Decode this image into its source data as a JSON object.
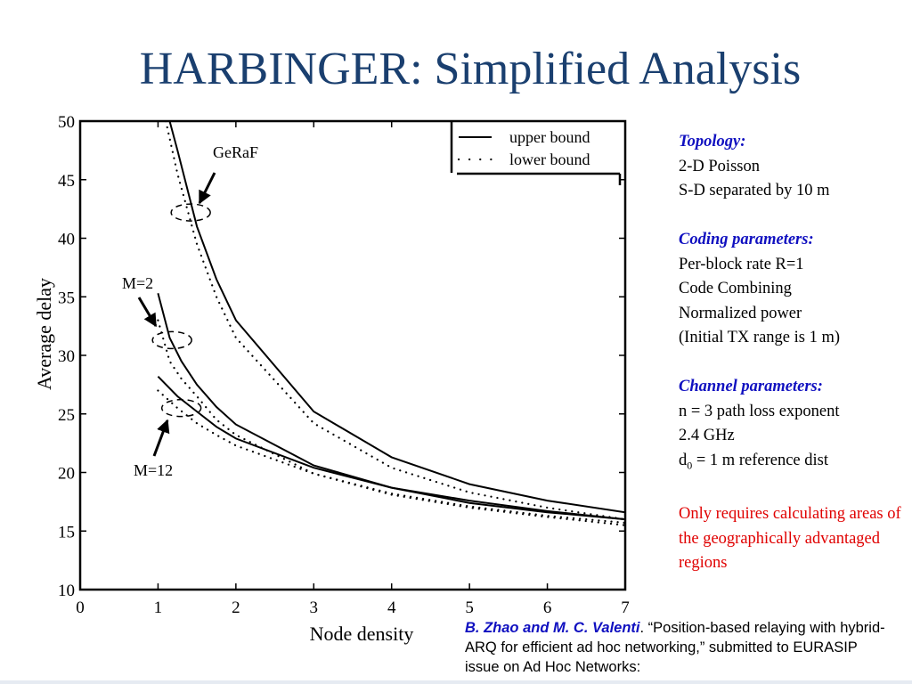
{
  "slide": {
    "title": "HARBINGER: Simplified Analysis"
  },
  "chart_data": {
    "type": "line",
    "xlabel": "Node density",
    "ylabel": "Average delay",
    "xlim": [
      0,
      7
    ],
    "ylim": [
      10,
      50
    ],
    "xticks": [
      0,
      1,
      2,
      3,
      4,
      5,
      6,
      7
    ],
    "yticks": [
      10,
      15,
      20,
      25,
      30,
      35,
      40,
      45,
      50
    ],
    "legend": {
      "position": "top-right",
      "entries": [
        {
          "label": "upper bound",
          "style": "solid"
        },
        {
          "label": "lower bound",
          "style": "dotted"
        }
      ]
    },
    "series": [
      {
        "group": "GeRaF",
        "bound": "upper",
        "style": "solid",
        "x": [
          1.15,
          1.25,
          1.5,
          1.75,
          2.0,
          3.0,
          4.0,
          5.0,
          6.0,
          7.0
        ],
        "y": [
          50.0,
          47.5,
          41.0,
          36.5,
          33.0,
          25.2,
          21.3,
          19.0,
          17.6,
          16.6
        ]
      },
      {
        "group": "GeRaF",
        "bound": "lower",
        "style": "dotted",
        "x": [
          1.1,
          1.25,
          1.5,
          1.75,
          2.0,
          3.0,
          4.0,
          5.0,
          6.0,
          7.0
        ],
        "y": [
          50.0,
          45.5,
          39.5,
          35.0,
          31.5,
          24.2,
          20.4,
          18.3,
          17.0,
          16.0
        ]
      },
      {
        "group": "M=2",
        "bound": "upper",
        "style": "solid",
        "x": [
          1.0,
          1.15,
          1.3,
          1.5,
          1.75,
          2.0,
          3.0,
          4.0,
          5.0,
          6.0,
          7.0
        ],
        "y": [
          35.3,
          31.5,
          29.5,
          27.5,
          25.6,
          24.1,
          20.6,
          18.7,
          17.6,
          16.7,
          16.0
        ]
      },
      {
        "group": "M=2",
        "bound": "lower",
        "style": "dotted",
        "x": [
          1.0,
          1.15,
          1.3,
          1.5,
          1.75,
          2.0,
          3.0,
          4.0,
          5.0,
          6.0,
          7.0
        ],
        "y": [
          33.0,
          29.5,
          28.0,
          26.5,
          24.5,
          23.2,
          19.9,
          18.1,
          17.0,
          16.2,
          15.5
        ]
      },
      {
        "group": "M=12",
        "bound": "upper",
        "style": "solid",
        "x": [
          1.0,
          1.25,
          1.5,
          1.75,
          2.0,
          3.0,
          4.0,
          5.0,
          6.0,
          7.0
        ],
        "y": [
          28.2,
          26.5,
          25.2,
          23.9,
          22.9,
          20.4,
          18.7,
          17.4,
          16.6,
          16.0
        ]
      },
      {
        "group": "M=12",
        "bound": "lower",
        "style": "dotted",
        "x": [
          1.0,
          1.25,
          1.5,
          1.75,
          2.0,
          3.0,
          4.0,
          5.0,
          6.0,
          7.0
        ],
        "y": [
          27.0,
          25.5,
          24.2,
          23.2,
          22.3,
          19.9,
          18.2,
          17.1,
          16.3,
          15.7
        ]
      }
    ],
    "annotations": [
      {
        "text": "GeRaF",
        "ellipse_center": [
          1.42,
          42.2
        ]
      },
      {
        "text": "M=2",
        "ellipse_center": [
          1.18,
          31.3
        ]
      },
      {
        "text": "M=12",
        "ellipse_center": [
          1.3,
          25.5
        ]
      }
    ]
  },
  "info_panel": {
    "topology_heading": "Topology:",
    "topology_lines": [
      "2-D Poisson",
      "S-D separated by 10 m"
    ],
    "coding_heading": "Coding parameters:",
    "coding_lines": [
      "Per-block rate R=1",
      "Code Combining",
      "Normalized power",
      "(Initial TX range is 1 m)"
    ],
    "channel_heading": "Channel parameters:",
    "channel_lines": [
      "n = 3 path loss exponent",
      "2.4 GHz"
    ],
    "ref_dist_prefix": "d",
    "ref_dist_sub": "0",
    "ref_dist_suffix": " = 1 m reference dist",
    "note": "Only requires calculating areas of the geographically advantaged regions"
  },
  "citation": {
    "authors": "B. Zhao and M. C. Valenti",
    "text": ". “Position-based relaying with hybrid-ARQ for efficient ad hoc networking,” submitted to EURASIP issue on Ad Hoc Networks:"
  },
  "colors": {
    "title": "#1a3f6f",
    "heading": "#1010c0",
    "note": "#e00000"
  }
}
